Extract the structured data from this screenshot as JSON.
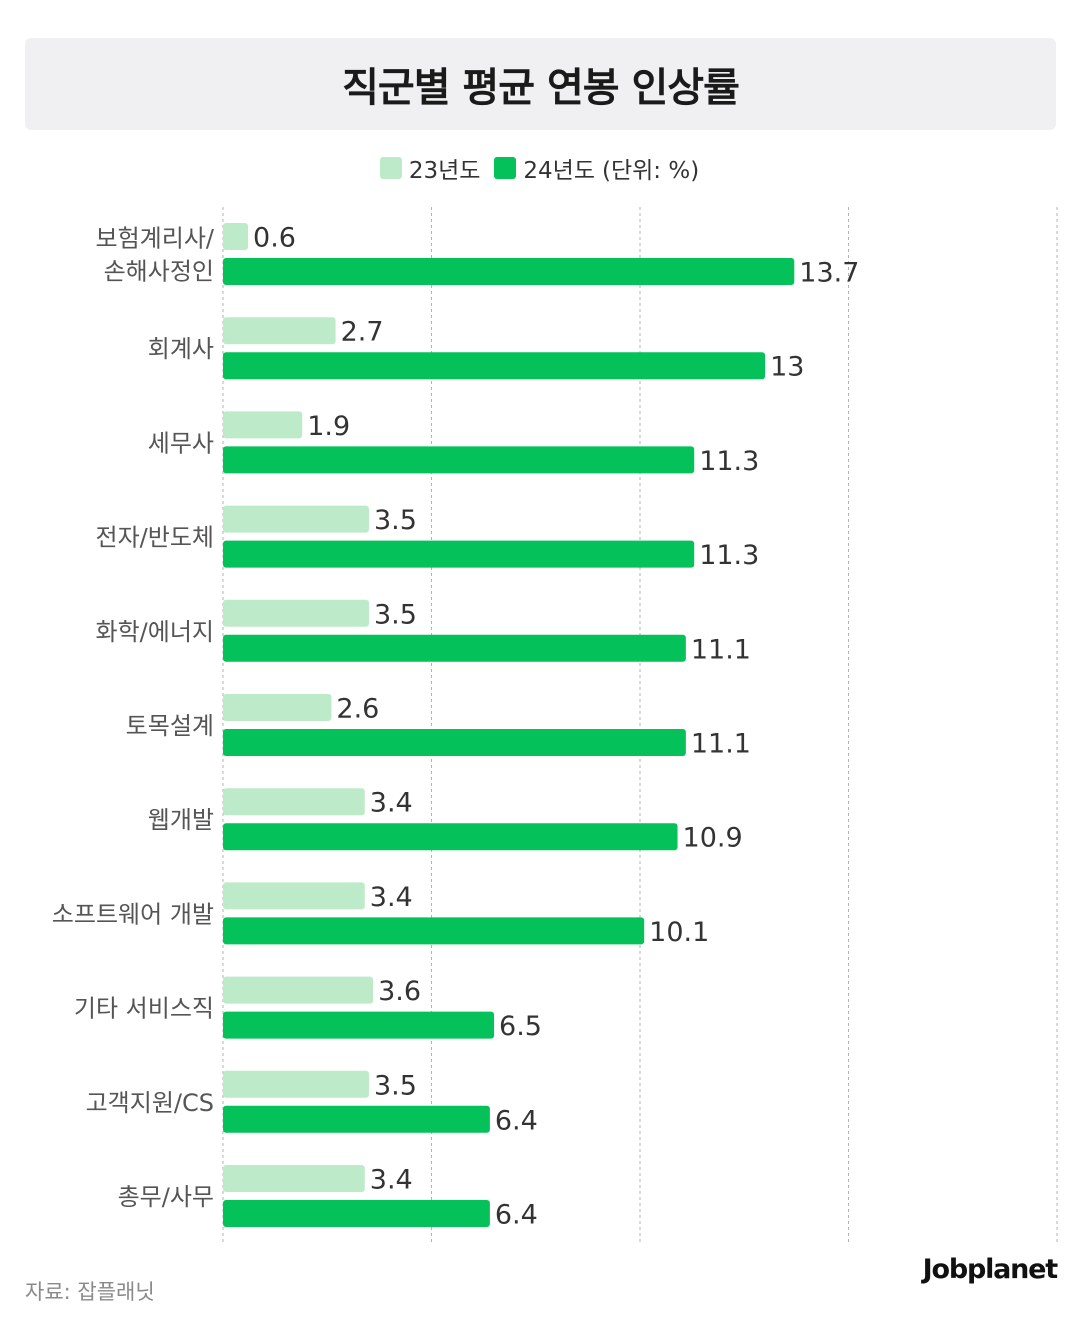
{
  "title": "직군별 평균 연봉 인상률",
  "legend": {
    "series1": "23년도",
    "series2": "24년도",
    "unit": "(단위: %)"
  },
  "colors": {
    "series1": "#bdebc9",
    "series2": "#04c15a",
    "grid": "#b3b3b3",
    "category_text": "#555555",
    "value_text": "#333333"
  },
  "chart_data": {
    "type": "bar",
    "orientation": "horizontal",
    "title": "직군별 평균 연봉 인상률",
    "unit": "%",
    "categories": [
      [
        "보험계리사/",
        "손해사정인"
      ],
      [
        "회계사"
      ],
      [
        "세무사"
      ],
      [
        "전자/반도체"
      ],
      [
        "화학/에너지"
      ],
      [
        "토목설계"
      ],
      [
        "웹개발"
      ],
      [
        "소프트웨어 개발"
      ],
      [
        "기타 서비스직"
      ],
      [
        "고객지원/CS"
      ],
      [
        "총무/사무"
      ]
    ],
    "series": [
      {
        "name": "23년도",
        "values": [
          0.6,
          2.7,
          1.9,
          3.5,
          3.5,
          2.6,
          3.4,
          3.4,
          3.6,
          3.5,
          3.4
        ]
      },
      {
        "name": "24년도",
        "values": [
          13.7,
          13,
          11.3,
          11.3,
          11.1,
          11.1,
          10.9,
          10.1,
          6.5,
          6.4,
          6.4
        ]
      }
    ],
    "xlim": [
      0,
      20
    ],
    "x_gridlines": [
      0,
      5,
      10,
      15,
      20
    ],
    "legend_position": "top-center",
    "grid": true
  },
  "source": "자료: 잡플래닛",
  "logo": "Jobplanet"
}
